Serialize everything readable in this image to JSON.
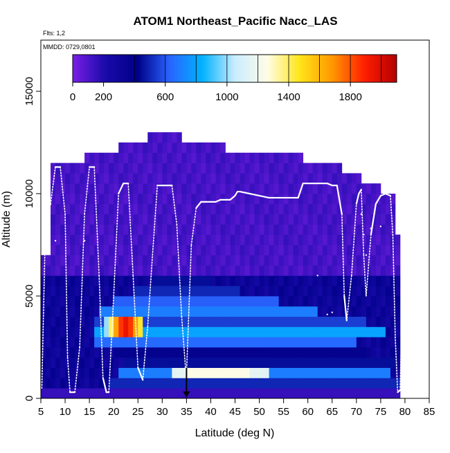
{
  "chart_data": {
    "type": "heatmap",
    "title": "ATOM1 Northeast_Pacific Nacc_LAS",
    "annotations": [
      "Flts: 1,2",
      "MMDD: 0729,0801"
    ],
    "xlabel": "Latitude (deg N)",
    "ylabel": "Altitude (m)",
    "xlim": [
      5,
      85
    ],
    "ylim": [
      0,
      17500
    ],
    "x_ticks": [
      "5",
      "10",
      "15",
      "20",
      "25",
      "30",
      "35",
      "40",
      "45",
      "50",
      "55",
      "60",
      "65",
      "70",
      "75",
      "80",
      "85"
    ],
    "y_ticks": [
      "0",
      "5000",
      "10000",
      "15000"
    ],
    "colorbar": {
      "range": [
        0,
        2100
      ],
      "tick_labels": [
        "0",
        "200",
        "600",
        "1000",
        "1400",
        "1800"
      ],
      "placement": "top inside plot",
      "colors": [
        "#7a1fe6",
        "#1a0aaa",
        "#000088",
        "#2a64ff",
        "#00b2ff",
        "#c9ecff",
        "#fffde6",
        "#ffe51a",
        "#ff9900",
        "#ff1e00",
        "#b30000"
      ]
    },
    "marker": {
      "latitude": 35,
      "symbol": "down-arrow"
    },
    "color_field": {
      "lat_bin_width": 1,
      "alt_bin_height": 500,
      "lat_bins": [
        [
          5,
          6
        ],
        [
          6,
          7
        ],
        [
          7,
          8
        ],
        [
          8,
          9
        ],
        [
          9,
          10
        ],
        [
          10,
          11
        ],
        [
          11,
          12
        ],
        [
          12,
          13
        ],
        [
          13,
          14
        ],
        [
          14,
          15
        ],
        [
          15,
          16
        ],
        [
          16,
          17
        ],
        [
          17,
          18
        ],
        [
          18,
          19
        ],
        [
          19,
          20
        ],
        [
          20,
          21
        ],
        [
          21,
          22
        ],
        [
          22,
          23
        ],
        [
          23,
          24
        ],
        [
          24,
          25
        ],
        [
          25,
          26
        ],
        [
          26,
          27
        ],
        [
          27,
          28
        ],
        [
          28,
          29
        ],
        [
          29,
          30
        ],
        [
          30,
          31
        ],
        [
          31,
          32
        ],
        [
          32,
          33
        ],
        [
          33,
          34
        ],
        [
          34,
          35
        ],
        [
          35,
          36
        ],
        [
          36,
          37
        ],
        [
          37,
          38
        ],
        [
          38,
          39
        ],
        [
          39,
          40
        ],
        [
          40,
          41
        ],
        [
          41,
          42
        ],
        [
          42,
          43
        ],
        [
          43,
          44
        ],
        [
          44,
          45
        ],
        [
          45,
          46
        ],
        [
          46,
          47
        ],
        [
          47,
          48
        ],
        [
          48,
          49
        ],
        [
          49,
          50
        ],
        [
          50,
          51
        ],
        [
          51,
          52
        ],
        [
          52,
          53
        ],
        [
          53,
          54
        ],
        [
          54,
          55
        ],
        [
          55,
          56
        ],
        [
          56,
          57
        ],
        [
          57,
          58
        ],
        [
          58,
          59
        ],
        [
          59,
          60
        ],
        [
          60,
          61
        ],
        [
          61,
          62
        ],
        [
          62,
          63
        ],
        [
          63,
          64
        ],
        [
          64,
          65
        ],
        [
          65,
          66
        ],
        [
          66,
          67
        ],
        [
          67,
          68
        ],
        [
          68,
          69
        ],
        [
          69,
          70
        ],
        [
          70,
          71
        ],
        [
          71,
          72
        ],
        [
          72,
          73
        ],
        [
          73,
          74
        ],
        [
          74,
          75
        ],
        [
          75,
          76
        ],
        [
          76,
          77
        ],
        [
          77,
          78
        ],
        [
          78,
          79
        ]
      ],
      "column_top_altitude_m": [
        7000,
        7000,
        11500,
        11500,
        11500,
        11500,
        11500,
        11500,
        11500,
        12000,
        12000,
        12000,
        12000,
        12000,
        12000,
        12000,
        12500,
        12500,
        12500,
        12500,
        12500,
        12500,
        13000,
        13000,
        13000,
        13000,
        13000,
        13000,
        13000,
        12500,
        12500,
        12500,
        12500,
        12500,
        12500,
        12500,
        12500,
        12500,
        12000,
        12000,
        12000,
        12000,
        12000,
        12000,
        12000,
        12000,
        12000,
        12000,
        12000,
        12000,
        12000,
        12000,
        12000,
        12000,
        11500,
        11500,
        11500,
        11500,
        11500,
        11500,
        11500,
        11500,
        11000,
        11000,
        11000,
        11000,
        10500,
        10500,
        10500,
        10500,
        10000,
        10000,
        10000,
        8000
      ],
      "layers": [
        {
          "alt_range_m": [
            0,
            500
          ],
          "lat_range": [
            5,
            79
          ],
          "value": 150
        },
        {
          "alt_range_m": [
            500,
            1000
          ],
          "lat_range": [
            19,
            79
          ],
          "value": 500
        },
        {
          "alt_range_m": [
            1000,
            1500
          ],
          "lat_range": [
            21,
            77
          ],
          "value": 700
        },
        {
          "alt_range_m": [
            1000,
            1500
          ],
          "lat_range": [
            32,
            52
          ],
          "value": 1150
        },
        {
          "alt_range_m": [
            1000,
            1500
          ],
          "lat_range": [
            35,
            48
          ],
          "value": 1250
        },
        {
          "alt_range_m": [
            1500,
            2000
          ],
          "lat_range": [
            22,
            78
          ],
          "value": 450
        },
        {
          "alt_range_m": [
            2000,
            2500
          ],
          "lat_range": [
            20,
            72
          ],
          "value": 380
        },
        {
          "alt_range_m": [
            2500,
            3000
          ],
          "lat_range": [
            16,
            70
          ],
          "value": 650
        },
        {
          "alt_range_m": [
            3000,
            3500
          ],
          "lat_range": [
            16,
            76
          ],
          "value": 800
        },
        {
          "alt_range_m": [
            3500,
            4000
          ],
          "lat_range": [
            16,
            72
          ],
          "value": 550
        },
        {
          "alt_range_m": [
            4000,
            4500
          ],
          "lat_range": [
            17,
            62
          ],
          "value": 700
        },
        {
          "alt_range_m": [
            4500,
            5000
          ],
          "lat_range": [
            20,
            54
          ],
          "value": 620
        },
        {
          "alt_range_m": [
            5000,
            5500
          ],
          "lat_range": [
            24,
            46
          ],
          "value": 500
        },
        {
          "alt_range_m": [
            5500,
            6000
          ],
          "lat_range": [
            28,
            40
          ],
          "value": 450
        }
      ],
      "hotspot": {
        "lat_range": [
          18,
          26
        ],
        "alt_range_m": [
          3000,
          4000
        ],
        "values": [
          1000,
          1400,
          1650,
          1850,
          1950,
          1850,
          1650,
          1450
        ]
      },
      "column_bottom_altitude_m": 0,
      "upper_background_value": 80
    },
    "flight_track": {
      "color": "#ffffff",
      "points": [
        [
          5.2,
          500
        ],
        [
          6,
          9000
        ],
        [
          7,
          9500
        ],
        [
          8,
          11300
        ],
        [
          9,
          11300
        ],
        [
          10,
          9000
        ],
        [
          10.5,
          2000
        ],
        [
          11,
          300
        ],
        [
          12,
          300
        ],
        [
          13,
          2500
        ],
        [
          14,
          9000
        ],
        [
          15,
          11300
        ],
        [
          16,
          11300
        ],
        [
          17,
          6000
        ],
        [
          17.8,
          1000
        ],
        [
          18.5,
          300
        ],
        [
          19,
          300
        ],
        [
          20,
          5000
        ],
        [
          21,
          10000
        ],
        [
          22,
          10500
        ],
        [
          23,
          10500
        ],
        [
          24,
          6000
        ],
        [
          25,
          1500
        ],
        [
          26,
          900
        ],
        [
          27,
          3500
        ],
        [
          28,
          7000
        ],
        [
          29,
          10400
        ],
        [
          30,
          10400
        ],
        [
          31,
          10400
        ],
        [
          32,
          10400
        ],
        [
          33,
          8500
        ],
        [
          34,
          4000
        ],
        [
          34.8,
          1500
        ],
        [
          35,
          1200
        ],
        [
          36,
          7500
        ],
        [
          37,
          9300
        ],
        [
          38,
          9600
        ],
        [
          39,
          9600
        ],
        [
          40,
          9600
        ],
        [
          41,
          9600
        ],
        [
          42,
          9700
        ],
        [
          43,
          9700
        ],
        [
          44,
          9700
        ],
        [
          45,
          9900
        ],
        [
          45.5,
          10100
        ],
        [
          46,
          10100
        ],
        [
          48,
          10000
        ],
        [
          50,
          9900
        ],
        [
          52,
          9800
        ],
        [
          54,
          9800
        ],
        [
          56,
          9800
        ],
        [
          58,
          9800
        ],
        [
          59,
          10500
        ],
        [
          62,
          10500
        ],
        [
          64,
          10500
        ],
        [
          65,
          10400
        ],
        [
          66,
          10400
        ],
        [
          67,
          9000
        ],
        [
          67.5,
          5000
        ],
        [
          68,
          3800
        ],
        [
          69,
          6000
        ],
        [
          70,
          9500
        ],
        [
          70.5,
          10000
        ],
        [
          71,
          10200
        ],
        [
          71.5,
          7000
        ],
        [
          72,
          5000
        ],
        [
          73,
          8000
        ],
        [
          74,
          9500
        ],
        [
          75,
          9900
        ],
        [
          76,
          10000
        ],
        [
          77,
          9900
        ],
        [
          77.5,
          8000
        ],
        [
          78,
          3000
        ],
        [
          78.5,
          300
        ],
        [
          79,
          400
        ],
        [
          79.5,
          5000
        ]
      ],
      "stray_dots": [
        [
          8,
          7700
        ],
        [
          14,
          7700
        ],
        [
          62,
          6000
        ],
        [
          64,
          4100
        ],
        [
          65,
          4200
        ],
        [
          71,
          9000
        ],
        [
          71.5,
          8000
        ],
        [
          72,
          7000
        ],
        [
          73,
          8300
        ],
        [
          75,
          8400
        ]
      ]
    }
  }
}
